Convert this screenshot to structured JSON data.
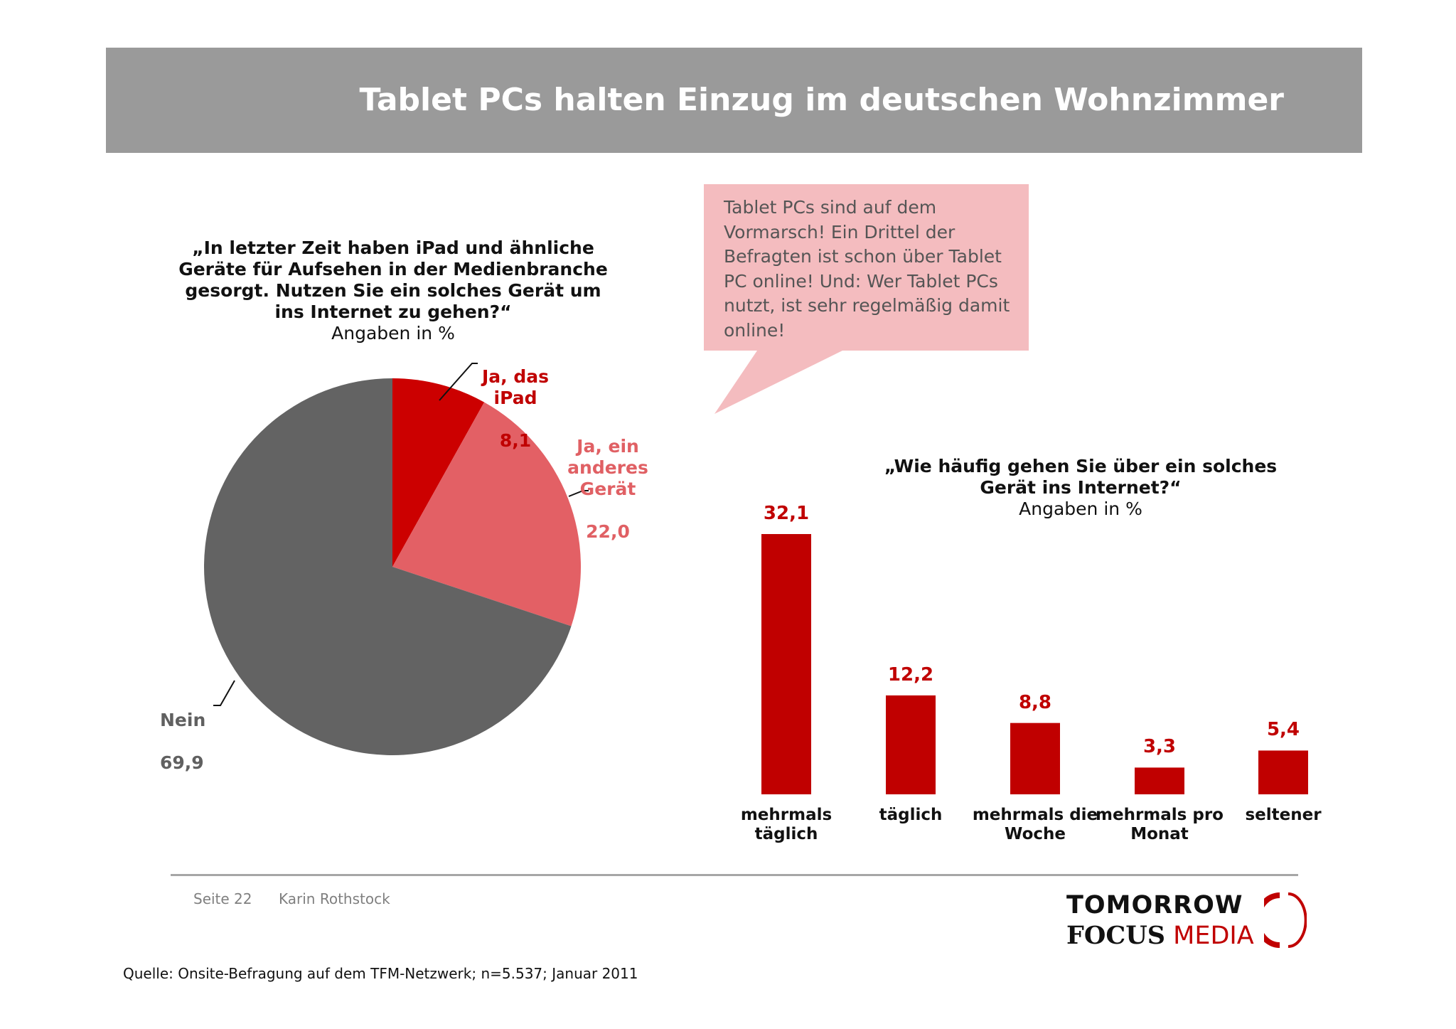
{
  "header": {
    "title": "Tablet PCs halten Einzug im deutschen Wohnzimmer"
  },
  "callout": {
    "lines": [
      "Tablet PCs sind auf dem",
      "Vormarsch! Ein Drittel der",
      "Befragten ist schon über Tablet",
      "PC online! Und: Wer Tablet PCs",
      "nutzt, ist sehr regelmäßig damit",
      "online!"
    ]
  },
  "chart_data": [
    {
      "type": "pie",
      "title_lines": [
        "„In letzter Zeit haben iPad und ähnliche",
        "Geräte für Aufsehen in der Medienbranche",
        "gesorgt. Nutzen Sie ein solches Gerät um",
        "ins Internet zu gehen?“"
      ],
      "subtitle": "Angaben in %",
      "slices": [
        {
          "label": "Ja, das\niPad",
          "value_label": "8,1",
          "value": 8.1,
          "color": "#cc0000"
        },
        {
          "label": "Ja, ein\nanderes\nGerät",
          "value_label": "22,0",
          "value": 22.0,
          "color": "#e36065"
        },
        {
          "label": "Nein",
          "value_label": "69,9",
          "value": 69.9,
          "color": "#636363"
        }
      ]
    },
    {
      "type": "bar",
      "title_lines": [
        "„Wie häufig gehen Sie über ein solches",
        "Gerät ins Internet?“"
      ],
      "subtitle": "Angaben in %",
      "categories": [
        "mehrmals\ntäglich",
        "täglich",
        "mehrmals die\nWoche",
        "mehrmals pro\nMonat",
        "seltener"
      ],
      "value_labels": [
        "32,1",
        "12,2",
        "8,8",
        "3,3",
        "5,4"
      ],
      "values": [
        32.1,
        12.2,
        8.8,
        3.3,
        5.4
      ],
      "bar_color": "#c00000",
      "ylim": [
        0,
        32.1
      ]
    }
  ],
  "footer": {
    "page": "Seite 22",
    "author": "Karin Rothstock",
    "source": "Quelle: Onsite-Befragung auf dem TFM-Netzwerk; n=5.537; Januar 2011"
  },
  "logo": {
    "line1": "TOMORROW",
    "focus": "FOCUS",
    "media": "MEDIA"
  }
}
